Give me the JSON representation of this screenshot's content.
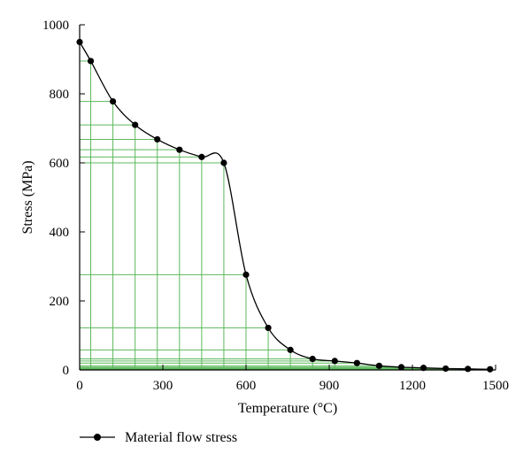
{
  "chart_data": {
    "type": "line",
    "title": "",
    "xlabel": "Temperature (°C)",
    "ylabel": "Stress (MPa)",
    "xlim": [
      0,
      1500
    ],
    "ylim": [
      0,
      1000
    ],
    "x_ticks": [
      0,
      300,
      600,
      900,
      1200,
      1500
    ],
    "y_ticks": [
      0,
      200,
      400,
      600,
      800,
      1000
    ],
    "grid": "green guide lines from each marker to both axes",
    "legend": "bottom-left",
    "colors": {
      "line": "#000000",
      "marker": "#000000",
      "guide": "#5cb85c"
    },
    "series": [
      {
        "name": "Material flow stress",
        "x": [
          0,
          40,
          120,
          200,
          280,
          360,
          440,
          520,
          600,
          680,
          760,
          840,
          920,
          1000,
          1080,
          1160,
          1240,
          1320,
          1400,
          1480
        ],
        "y": [
          950,
          895,
          778,
          710,
          668,
          638,
          617,
          600,
          276,
          122,
          58,
          32,
          26,
          20,
          12,
          8,
          6,
          4,
          3,
          2
        ]
      }
    ]
  }
}
